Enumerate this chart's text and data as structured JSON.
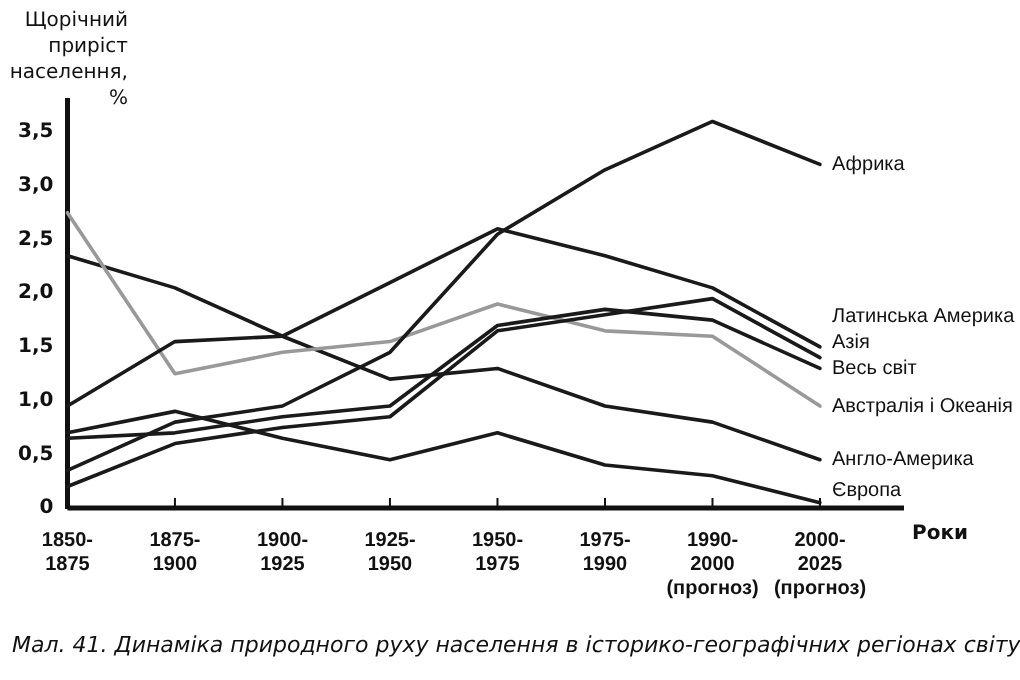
{
  "chart_data": {
    "type": "line",
    "ylabel": "Щорічний приріст населення, %",
    "xlabel": "Роки",
    "categories": [
      "1850-\n1875",
      "1875-\n1900",
      "1900-\n1925",
      "1925-\n1950",
      "1950-\n1975",
      "1975-\n1990",
      "1990-\n2000\n(прогноз)",
      "2000-\n2025\n(прогноз)"
    ],
    "series": [
      {
        "name": "Африка",
        "color": "#1a1a1a",
        "values": [
          0.35,
          0.8,
          0.95,
          1.45,
          2.55,
          3.15,
          3.6,
          3.2
        ]
      },
      {
        "name": "Латинська Америка",
        "color": "#1a1a1a",
        "values": [
          0.95,
          1.55,
          1.6,
          2.1,
          2.6,
          2.35,
          2.05,
          1.5
        ]
      },
      {
        "name": "Азія",
        "color": "#1a1a1a",
        "values": [
          0.2,
          0.6,
          0.75,
          0.85,
          1.65,
          1.8,
          1.95,
          1.4
        ]
      },
      {
        "name": "Весь світ",
        "color": "#1a1a1a",
        "values": [
          0.65,
          0.7,
          0.85,
          0.95,
          1.7,
          1.85,
          1.75,
          1.3
        ]
      },
      {
        "name": "Австралія і Океанія",
        "color": "#999999",
        "values": [
          2.75,
          1.25,
          1.45,
          1.55,
          1.9,
          1.65,
          1.6,
          0.95
        ]
      },
      {
        "name": "Англо-Америка",
        "color": "#1a1a1a",
        "values": [
          2.35,
          2.05,
          1.6,
          1.2,
          1.3,
          0.95,
          0.8,
          0.45
        ]
      },
      {
        "name": "Європа",
        "color": "#1a1a1a",
        "values": [
          0.7,
          0.9,
          0.65,
          0.45,
          0.7,
          0.4,
          0.3,
          0.05
        ]
      }
    ],
    "ylim": [
      0,
      3.8
    ],
    "yticks": [
      {
        "value": 0,
        "label": "0"
      },
      {
        "value": 0.5,
        "label": "0,5"
      },
      {
        "value": 1,
        "label": "1,0"
      },
      {
        "value": 1.5,
        "label": "1,5"
      },
      {
        "value": 2,
        "label": "2,0"
      },
      {
        "value": 2.5,
        "label": "2,5"
      },
      {
        "value": 3,
        "label": "3,0"
      },
      {
        "value": 3.5,
        "label": "3,5"
      }
    ],
    "grid": false,
    "legend": false,
    "marker": "none",
    "line_style": "solid",
    "annotations": [
      "Мал. 41. Динаміка природного руху населення в історико-географічних регіонах світу"
    ]
  }
}
